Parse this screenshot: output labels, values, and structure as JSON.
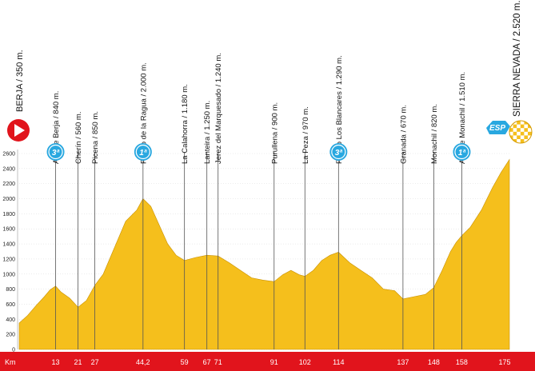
{
  "km_label": "Km",
  "start": {
    "label": "BERJA / 350 m."
  },
  "finish": {
    "label": "SIERRA NEVADA / 2.520 m.",
    "badge": "ESP"
  },
  "colors": {
    "fill": "#f5bf1c",
    "km_bar": "#e1141c",
    "badge": "#29a8e0",
    "start": "#e1141c"
  },
  "waypoints": [
    {
      "name": "Alto de Berja / 840 m.",
      "km": 13,
      "km_label": "13",
      "category": "3ª"
    },
    {
      "name": "Cherín / 560 m.",
      "km": 21,
      "km_label": "21"
    },
    {
      "name": "Picena / 850 m.",
      "km": 27,
      "km_label": "27"
    },
    {
      "name": "Puerto de la Ragua / 2.000 m.",
      "km": 44.2,
      "km_label": "44,2",
      "category": "1ª"
    },
    {
      "name": "La Calahorra / 1.180 m.",
      "km": 59,
      "km_label": "59"
    },
    {
      "name": "Lanteira / 1.250 m.",
      "km": 67,
      "km_label": "67"
    },
    {
      "name": "Jerez del Marquesado / 1.240 m.",
      "km": 71,
      "km_label": "71"
    },
    {
      "name": "Purullena / 900 m.",
      "km": 91,
      "km_label": "91"
    },
    {
      "name": "La Peza / 970 m.",
      "km": 102,
      "km_label": "102"
    },
    {
      "name": "Puerto Los Blancares / 1.290 m.",
      "km": 114,
      "km_label": "114",
      "category": "3ª"
    },
    {
      "name": "Granada / 670 m.",
      "km": 137,
      "km_label": "137"
    },
    {
      "name": "Monachil / 820 m.",
      "km": 148,
      "km_label": "148"
    },
    {
      "name": "Alto de Monachil / 1.510 m.",
      "km": 158,
      "km_label": "158",
      "category": "1ª"
    }
  ],
  "chart_data": {
    "type": "area",
    "xlabel": "Km",
    "ylabel": "",
    "xlim": [
      0,
      175
    ],
    "ylim": [
      0,
      2600
    ],
    "yticks": [
      0,
      200,
      400,
      600,
      800,
      1000,
      1200,
      1400,
      1600,
      1800,
      2000,
      2200,
      2400,
      2600
    ],
    "ytick_labels": [
      "0",
      "200",
      "400",
      "600",
      "800",
      "1000",
      "1200",
      "1400",
      "1600",
      "1800",
      "2000",
      "2200",
      "2400",
      "2600"
    ],
    "x_end_label": "175",
    "x": [
      0,
      3,
      6,
      9,
      11,
      13,
      15,
      18,
      21,
      24,
      27,
      30,
      34,
      38,
      42,
      44.2,
      47,
      50,
      53,
      56,
      59,
      63,
      67,
      71,
      75,
      79,
      83,
      87,
      91,
      94,
      97,
      100,
      102,
      105,
      108,
      111,
      114,
      118,
      122,
      126,
      130,
      134,
      137,
      141,
      145,
      148,
      151,
      154,
      156,
      158,
      161,
      165,
      169,
      172,
      175
    ],
    "y": [
      350,
      450,
      580,
      700,
      790,
      840,
      760,
      680,
      560,
      650,
      850,
      1000,
      1350,
      1700,
      1850,
      2000,
      1900,
      1650,
      1400,
      1250,
      1180,
      1220,
      1250,
      1240,
      1150,
      1050,
      950,
      920,
      900,
      990,
      1050,
      990,
      970,
      1050,
      1180,
      1250,
      1290,
      1150,
      1050,
      950,
      800,
      780,
      670,
      700,
      730,
      820,
      1050,
      1300,
      1420,
      1510,
      1620,
      1850,
      2150,
      2350,
      2520
    ]
  }
}
